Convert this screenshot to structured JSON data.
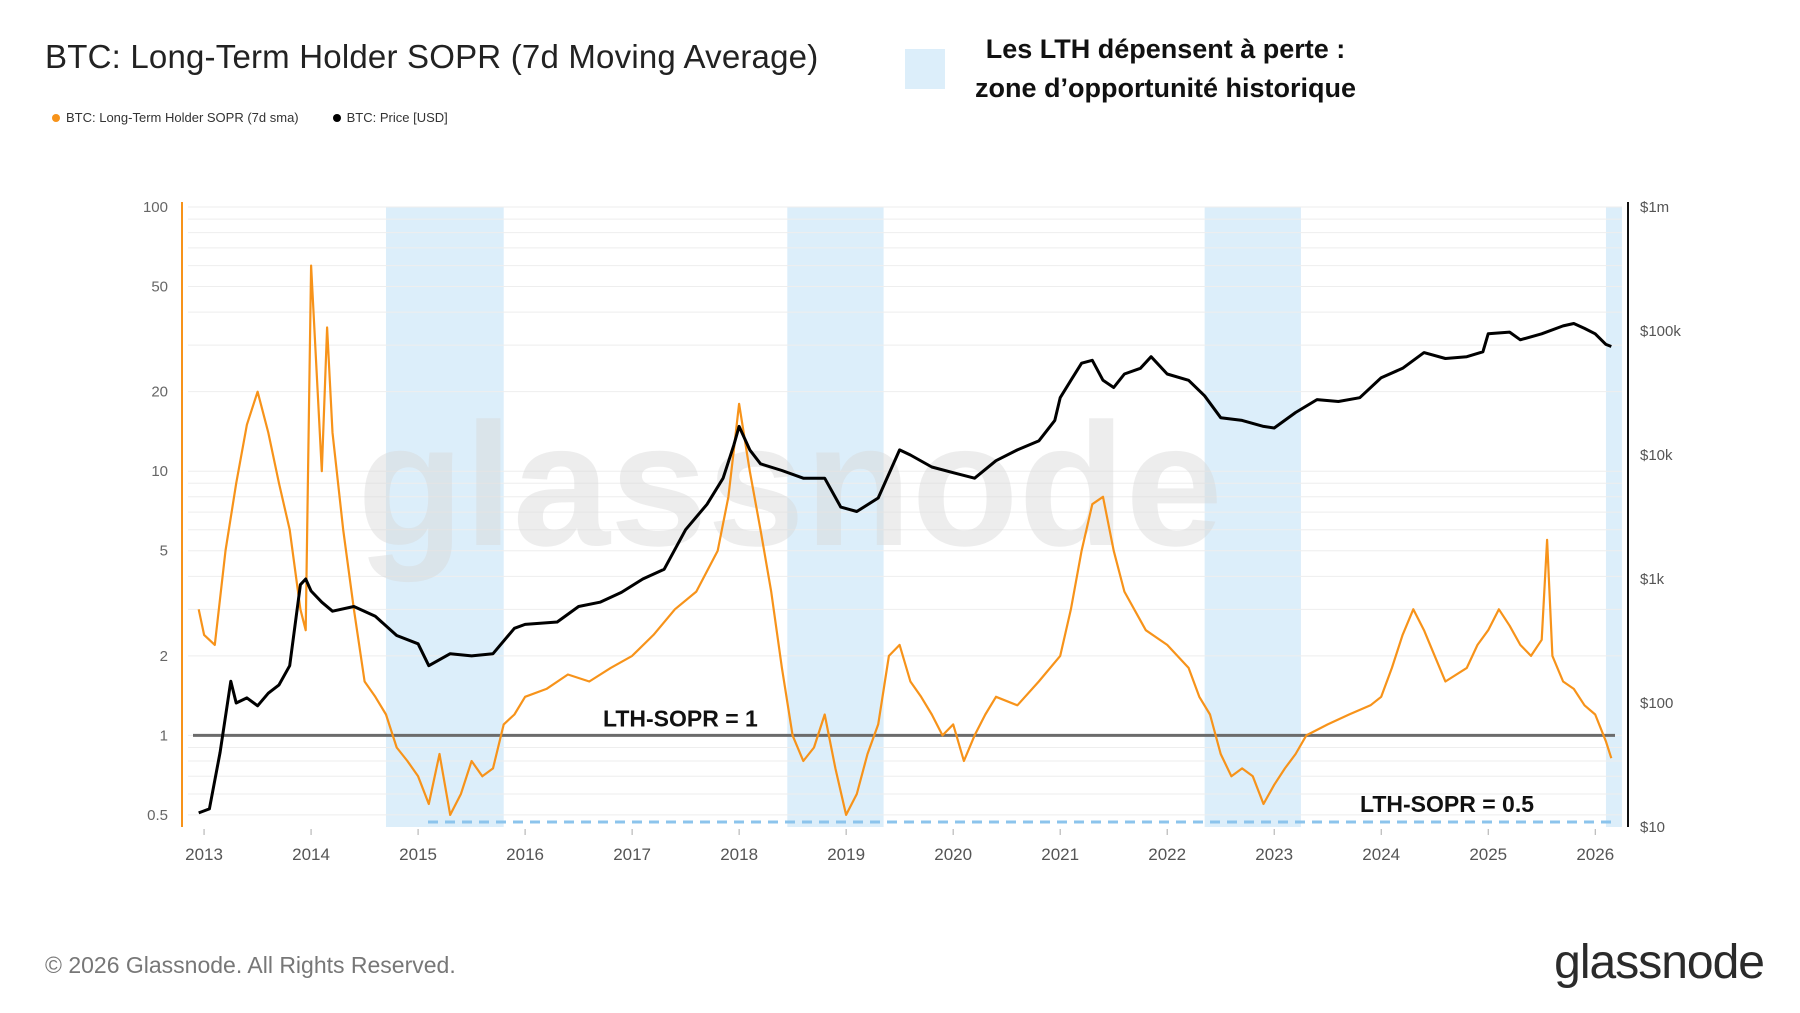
{
  "header": {
    "title": "BTC: Long-Term Holder SOPR (7d Moving Average)",
    "legend": [
      {
        "label": "BTC: Long-Term Holder SOPR (7d sma)",
        "color": "#f7931a"
      },
      {
        "label": "BTC: Price [USD]",
        "color": "#000000"
      }
    ],
    "callout_line1": "Les LTH dépensent à perte :",
    "callout_line2": "zone d’opportunité historique",
    "callout_color": "#dceefa"
  },
  "footer": {
    "copyright": "© 2026 Glassnode. All Rights Reserved.",
    "brand": "glassnode"
  },
  "chart_data": {
    "type": "line",
    "watermark": "glassnode",
    "x_ticks": [
      "2013",
      "2014",
      "2015",
      "2016",
      "2017",
      "2018",
      "2019",
      "2020",
      "2021",
      "2022",
      "2023",
      "2024",
      "2025",
      "2026"
    ],
    "xlim": [
      2012.85,
      2026.25
    ],
    "y_left": {
      "scale": "log",
      "ticks": [
        100,
        50,
        20,
        10,
        5,
        2,
        1,
        0.5
      ],
      "range": [
        0.45,
        100
      ]
    },
    "y_right": {
      "scale": "log",
      "ticks": [
        "$1m",
        "$100k",
        "$10k",
        "$1k",
        "$100",
        "$10"
      ],
      "range": [
        10,
        1000000
      ]
    },
    "shaded_zones": [
      [
        2014.7,
        2015.8
      ],
      [
        2018.45,
        2019.35
      ],
      [
        2022.35,
        2023.25
      ],
      [
        2026.1,
        2026.25
      ]
    ],
    "annotations": [
      {
        "label": "LTH-SOPR = 1",
        "value": 1,
        "style": "solid",
        "color": "#6b6b6b"
      },
      {
        "label": "LTH-SOPR = 0.5",
        "value": 0.47,
        "style": "dashed",
        "color": "#8cc4ec"
      }
    ],
    "series": [
      {
        "name": "BTC: Long-Term Holder SOPR (7d sma)",
        "color": "#f7931a",
        "axis": "left",
        "x": [
          2012.95,
          2013.0,
          2013.1,
          2013.2,
          2013.3,
          2013.4,
          2013.5,
          2013.6,
          2013.7,
          2013.8,
          2013.9,
          2013.95,
          2014.0,
          2014.1,
          2014.15,
          2014.2,
          2014.3,
          2014.4,
          2014.5,
          2014.6,
          2014.7,
          2014.8,
          2014.9,
          2015.0,
          2015.1,
          2015.2,
          2015.3,
          2015.4,
          2015.5,
          2015.6,
          2015.7,
          2015.8,
          2015.9,
          2016.0,
          2016.2,
          2016.4,
          2016.6,
          2016.8,
          2017.0,
          2017.2,
          2017.4,
          2017.6,
          2017.8,
          2017.9,
          2017.95,
          2018.0,
          2018.1,
          2018.2,
          2018.3,
          2018.4,
          2018.5,
          2018.6,
          2018.7,
          2018.8,
          2018.9,
          2019.0,
          2019.1,
          2019.2,
          2019.3,
          2019.4,
          2019.5,
          2019.6,
          2019.7,
          2019.8,
          2019.9,
          2020.0,
          2020.1,
          2020.2,
          2020.3,
          2020.4,
          2020.6,
          2020.8,
          2021.0,
          2021.1,
          2021.2,
          2021.3,
          2021.4,
          2021.5,
          2021.6,
          2021.8,
          2022.0,
          2022.2,
          2022.3,
          2022.4,
          2022.5,
          2022.6,
          2022.7,
          2022.8,
          2022.9,
          2023.0,
          2023.1,
          2023.2,
          2023.3,
          2023.5,
          2023.7,
          2023.9,
          2024.0,
          2024.1,
          2024.2,
          2024.3,
          2024.4,
          2024.5,
          2024.6,
          2024.8,
          2024.9,
          2025.0,
          2025.1,
          2025.2,
          2025.3,
          2025.4,
          2025.5,
          2025.55,
          2025.6,
          2025.7,
          2025.8,
          2025.9,
          2026.0,
          2026.1,
          2026.15
        ],
        "y": [
          3.0,
          2.4,
          2.2,
          5.0,
          9.0,
          15.0,
          20.0,
          14.0,
          9.0,
          6.0,
          3.0,
          2.5,
          60.0,
          10.0,
          35.0,
          14.0,
          6.0,
          3.0,
          1.6,
          1.4,
          1.2,
          0.9,
          0.8,
          0.7,
          0.55,
          0.85,
          0.5,
          0.6,
          0.8,
          0.7,
          0.75,
          1.1,
          1.2,
          1.4,
          1.5,
          1.7,
          1.6,
          1.8,
          2.0,
          2.4,
          3.0,
          3.5,
          5.0,
          8.0,
          12.0,
          18.0,
          10.0,
          6.0,
          3.5,
          1.8,
          1.0,
          0.8,
          0.9,
          1.2,
          0.75,
          0.5,
          0.6,
          0.85,
          1.1,
          2.0,
          2.2,
          1.6,
          1.4,
          1.2,
          1.0,
          1.1,
          0.8,
          1.0,
          1.2,
          1.4,
          1.3,
          1.6,
          2.0,
          3.0,
          5.0,
          7.5,
          8.0,
          5.0,
          3.5,
          2.5,
          2.2,
          1.8,
          1.4,
          1.2,
          0.85,
          0.7,
          0.75,
          0.7,
          0.55,
          0.65,
          0.75,
          0.85,
          1.0,
          1.1,
          1.2,
          1.3,
          1.4,
          1.8,
          2.4,
          3.0,
          2.5,
          2.0,
          1.6,
          1.8,
          2.2,
          2.5,
          3.0,
          2.6,
          2.2,
          2.0,
          2.3,
          5.5,
          2.0,
          1.6,
          1.5,
          1.3,
          1.2,
          0.95,
          0.82
        ],
        "peak_labels": []
      },
      {
        "name": "BTC: Price [USD]",
        "color": "#000000",
        "axis": "right",
        "x": [
          2012.95,
          2013.05,
          2013.15,
          2013.25,
          2013.3,
          2013.4,
          2013.5,
          2013.6,
          2013.7,
          2013.8,
          2013.9,
          2013.95,
          2014.0,
          2014.1,
          2014.2,
          2014.4,
          2014.6,
          2014.8,
          2015.0,
          2015.1,
          2015.3,
          2015.5,
          2015.7,
          2015.9,
          2016.0,
          2016.3,
          2016.5,
          2016.7,
          2016.9,
          2017.1,
          2017.3,
          2017.5,
          2017.7,
          2017.85,
          2017.95,
          2018.0,
          2018.1,
          2018.2,
          2018.4,
          2018.6,
          2018.8,
          2018.95,
          2019.1,
          2019.3,
          2019.5,
          2019.6,
          2019.8,
          2020.0,
          2020.2,
          2020.4,
          2020.6,
          2020.8,
          2020.95,
          2021.0,
          2021.1,
          2021.2,
          2021.3,
          2021.4,
          2021.5,
          2021.6,
          2021.75,
          2021.85,
          2022.0,
          2022.2,
          2022.35,
          2022.5,
          2022.7,
          2022.9,
          2023.0,
          2023.2,
          2023.4,
          2023.6,
          2023.8,
          2024.0,
          2024.2,
          2024.4,
          2024.6,
          2024.8,
          2024.95,
          2025.0,
          2025.2,
          2025.3,
          2025.5,
          2025.7,
          2025.8,
          2025.9,
          2026.0,
          2026.1,
          2026.15
        ],
        "y": [
          13,
          14,
          40,
          150,
          100,
          110,
          95,
          120,
          140,
          200,
          900,
          1000,
          800,
          650,
          550,
          600,
          500,
          350,
          300,
          200,
          250,
          240,
          250,
          400,
          430,
          450,
          600,
          650,
          780,
          1000,
          1200,
          2500,
          4000,
          6500,
          12000,
          17000,
          11000,
          8500,
          7500,
          6500,
          6500,
          3800,
          3500,
          4500,
          11000,
          10000,
          8000,
          7200,
          6500,
          9000,
          11000,
          13000,
          19000,
          29000,
          40000,
          55000,
          58000,
          40000,
          35000,
          45000,
          50000,
          62000,
          45000,
          40000,
          30000,
          20000,
          19000,
          17000,
          16500,
          22000,
          28000,
          27000,
          29000,
          42000,
          50000,
          67000,
          60000,
          62000,
          68000,
          95000,
          98000,
          85000,
          95000,
          110000,
          115000,
          105000,
          95000,
          78000,
          75000
        ]
      }
    ]
  }
}
